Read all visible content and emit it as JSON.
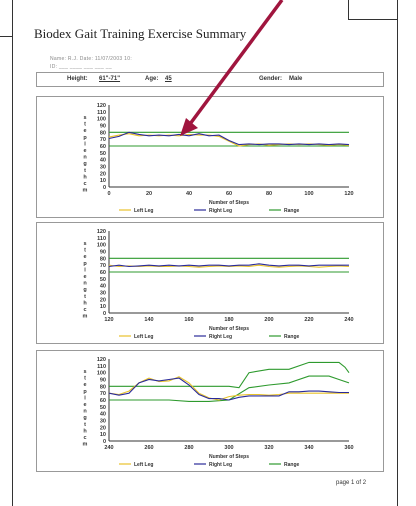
{
  "header": {
    "title": "Biodex Gait Training Exercise Summary",
    "blurred_line_1": "Name:   R.J.                    Date:   11/07/2003 10:",
    "blurred_line_2": "ID: ___  ____  ___  ___  __",
    "height_label": "Height:",
    "height_value": "61\"-71\"",
    "age_label": "Age:",
    "age_value": "45",
    "gender_label": "Gender:",
    "gender_value": "Male"
  },
  "footer": {
    "page_label": "page 1 of 2"
  },
  "colors": {
    "left_leg": "#e8c22a",
    "right_leg": "#2a2a9a",
    "range": "#2e9a2e",
    "arrow": "#a0153e"
  },
  "chart_data": [
    {
      "type": "line",
      "ylim": [
        0,
        120
      ],
      "yticks": [
        "120",
        "110",
        "100",
        "90",
        "80",
        "70",
        "60",
        "50",
        "40",
        "30",
        "20",
        "10",
        "0"
      ],
      "xlim": [
        0,
        120
      ],
      "xticks": [
        "0",
        "20",
        "40",
        "60",
        "80",
        "100",
        "120"
      ],
      "xlabel": "Number of Steps",
      "ylabel": "Step Length cm",
      "legend": [
        "Left Leg",
        "Right Leg",
        "Range"
      ],
      "series": [
        {
          "name": "Left Leg",
          "x": [
            0,
            5,
            10,
            15,
            20,
            25,
            30,
            35,
            40,
            45,
            50,
            55,
            60,
            65,
            70,
            75,
            80,
            85,
            90,
            95,
            100,
            105,
            110,
            115,
            120
          ],
          "y": [
            73,
            76,
            78,
            75,
            76,
            75,
            76,
            75,
            77,
            76,
            76,
            74,
            67,
            60,
            62,
            63,
            61,
            62,
            63,
            62,
            63,
            62,
            61,
            62,
            61
          ]
        },
        {
          "name": "Right Leg",
          "x": [
            0,
            5,
            10,
            15,
            20,
            25,
            30,
            35,
            40,
            45,
            50,
            55,
            60,
            65,
            70,
            75,
            80,
            85,
            90,
            95,
            100,
            105,
            110,
            115,
            120
          ],
          "y": [
            71,
            74,
            80,
            77,
            75,
            76,
            75,
            77,
            75,
            78,
            75,
            76,
            68,
            62,
            63,
            62,
            63,
            63,
            62,
            63,
            62,
            63,
            62,
            63,
            62
          ]
        },
        {
          "name": "Range",
          "x": [
            0,
            120
          ],
          "y": [
            80,
            80
          ]
        },
        {
          "name": "Range",
          "x": [
            0,
            120
          ],
          "y": [
            60,
            60
          ]
        }
      ]
    },
    {
      "type": "line",
      "ylim": [
        0,
        120
      ],
      "yticks": [
        "120",
        "110",
        "100",
        "90",
        "80",
        "70",
        "60",
        "50",
        "40",
        "30",
        "20",
        "10",
        "0"
      ],
      "xlim": [
        120,
        240
      ],
      "xticks": [
        "120",
        "140",
        "160",
        "180",
        "200",
        "220",
        "240"
      ],
      "xlabel": "Number of Steps",
      "ylabel": "Step Length cm",
      "legend": [
        "Left Leg",
        "Right Leg",
        "Range"
      ],
      "series": [
        {
          "name": "Left Leg",
          "x": [
            120,
            125,
            130,
            135,
            140,
            145,
            150,
            155,
            160,
            165,
            170,
            175,
            180,
            185,
            190,
            195,
            200,
            205,
            210,
            215,
            220,
            225,
            230,
            235,
            240
          ],
          "y": [
            70,
            68,
            69,
            68,
            69,
            68,
            68,
            69,
            68,
            67,
            68,
            69,
            68,
            69,
            68,
            70,
            68,
            67,
            68,
            69,
            68,
            67,
            68,
            69,
            68
          ]
        },
        {
          "name": "Right Leg",
          "x": [
            120,
            125,
            130,
            135,
            140,
            145,
            150,
            155,
            160,
            165,
            170,
            175,
            180,
            185,
            190,
            195,
            200,
            205,
            210,
            215,
            220,
            225,
            230,
            235,
            240
          ],
          "y": [
            68,
            70,
            68,
            69,
            70,
            69,
            70,
            69,
            70,
            69,
            70,
            70,
            69,
            70,
            70,
            72,
            70,
            69,
            70,
            70,
            69,
            70,
            70,
            70,
            70
          ]
        },
        {
          "name": "Range",
          "x": [
            120,
            240
          ],
          "y": [
            80,
            80
          ]
        },
        {
          "name": "Range",
          "x": [
            120,
            240
          ],
          "y": [
            60,
            60
          ]
        }
      ]
    },
    {
      "type": "line",
      "ylim": [
        0,
        120
      ],
      "yticks": [
        "120",
        "110",
        "100",
        "90",
        "80",
        "70",
        "60",
        "50",
        "40",
        "30",
        "20",
        "10",
        "0"
      ],
      "xlim": [
        240,
        360
      ],
      "xticks": [
        "240",
        "260",
        "280",
        "300",
        "320",
        "340",
        "360"
      ],
      "xlabel": "Number of Steps",
      "ylabel": "Step Length cm",
      "legend": [
        "Left Leg",
        "Right Leg",
        "Range"
      ],
      "series": [
        {
          "name": "Left Leg",
          "x": [
            240,
            245,
            250,
            255,
            260,
            265,
            270,
            275,
            280,
            285,
            290,
            295,
            300,
            305,
            310,
            315,
            320,
            325,
            330,
            335,
            340,
            345,
            350,
            355,
            360
          ],
          "y": [
            70,
            68,
            73,
            85,
            92,
            87,
            88,
            94,
            85,
            70,
            63,
            60,
            65,
            67,
            68,
            68,
            67,
            68,
            70,
            70,
            70,
            70,
            70,
            70,
            70
          ]
        },
        {
          "name": "Right Leg",
          "x": [
            240,
            245,
            250,
            255,
            260,
            265,
            270,
            275,
            280,
            285,
            290,
            295,
            300,
            305,
            310,
            315,
            320,
            325,
            330,
            335,
            340,
            345,
            350,
            355,
            360
          ],
          "y": [
            70,
            67,
            70,
            85,
            90,
            88,
            90,
            92,
            82,
            68,
            62,
            62,
            60,
            64,
            66,
            66,
            66,
            66,
            72,
            72,
            73,
            73,
            72,
            71,
            71
          ]
        },
        {
          "name": "Range",
          "x": [
            240,
            300,
            305,
            310,
            320,
            330,
            340,
            350,
            355,
            358,
            360
          ],
          "y": [
            80,
            80,
            78,
            100,
            105,
            105,
            115,
            115,
            115,
            108,
            100
          ]
        },
        {
          "name": "Range",
          "x": [
            240,
            270,
            280,
            290,
            300,
            310,
            320,
            330,
            340,
            350,
            355,
            360
          ],
          "y": [
            60,
            60,
            58,
            58,
            60,
            78,
            82,
            85,
            95,
            95,
            90,
            85
          ]
        }
      ]
    }
  ]
}
